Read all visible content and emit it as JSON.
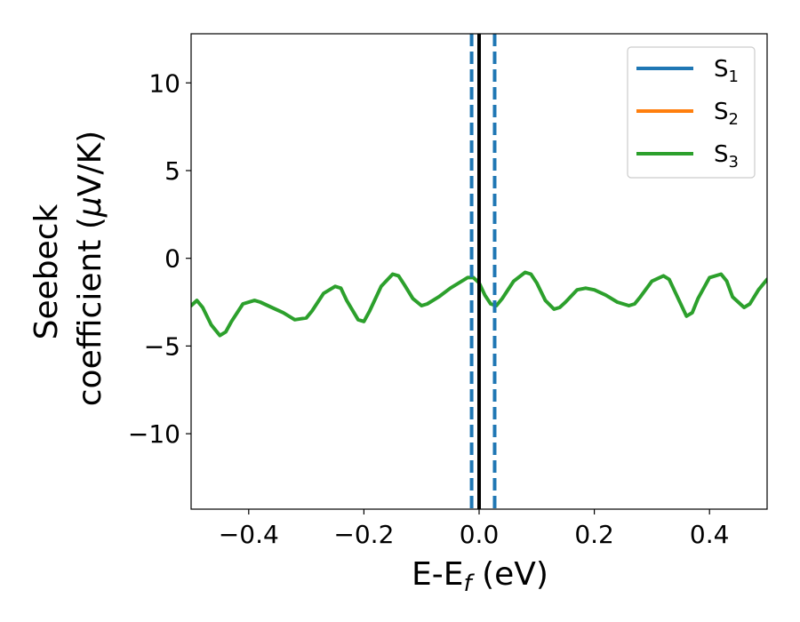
{
  "chart_data": {
    "type": "line",
    "xlabel": {
      "main": "E-E",
      "sub": "f",
      "tail": " (eV)"
    },
    "ylabel": {
      "line1": "Seebeck",
      "line2_pre": "coefficient  (",
      "line2_mu": "μ",
      "line2_post": "V/K)"
    },
    "xlim": [
      -0.5,
      0.5
    ],
    "ylim": [
      -14.3,
      12.8
    ],
    "x_ticks": [
      -0.4,
      -0.2,
      0.0,
      0.2,
      0.4
    ],
    "x_tick_labels": [
      "−0.4",
      "−0.2",
      "0.0",
      "0.2",
      "0.4"
    ],
    "y_ticks": [
      -10,
      -5,
      0,
      5,
      10
    ],
    "y_tick_labels": [
      "−10",
      "−5",
      "0",
      "5",
      "10"
    ],
    "grid": false,
    "legend_position": "top-right",
    "series": [
      {
        "name": "S",
        "subscript": "1",
        "color": "#1f77b4"
      },
      {
        "name": "S",
        "subscript": "2",
        "color": "#ff7f0e"
      },
      {
        "name": "S",
        "subscript": "3",
        "color": "#2ca02c",
        "x": [
          -0.5,
          -0.49,
          -0.48,
          -0.465,
          -0.45,
          -0.44,
          -0.43,
          -0.41,
          -0.39,
          -0.38,
          -0.36,
          -0.34,
          -0.32,
          -0.3,
          -0.29,
          -0.27,
          -0.25,
          -0.24,
          -0.23,
          -0.21,
          -0.2,
          -0.19,
          -0.17,
          -0.15,
          -0.14,
          -0.13,
          -0.115,
          -0.1,
          -0.09,
          -0.07,
          -0.05,
          -0.02,
          -0.01,
          0.0,
          0.01,
          0.02,
          0.03,
          0.04,
          0.06,
          0.08,
          0.09,
          0.1,
          0.115,
          0.13,
          0.14,
          0.15,
          0.17,
          0.185,
          0.2,
          0.22,
          0.24,
          0.26,
          0.27,
          0.28,
          0.3,
          0.32,
          0.33,
          0.34,
          0.36,
          0.37,
          0.38,
          0.4,
          0.42,
          0.43,
          0.44,
          0.46,
          0.47,
          0.485,
          0.5
        ],
        "y": [
          -2.7,
          -2.4,
          -2.8,
          -3.8,
          -4.4,
          -4.2,
          -3.6,
          -2.6,
          -2.4,
          -2.5,
          -2.8,
          -3.1,
          -3.5,
          -3.4,
          -3.0,
          -2.0,
          -1.6,
          -1.7,
          -2.4,
          -3.5,
          -3.6,
          -3.0,
          -1.6,
          -0.9,
          -1.0,
          -1.5,
          -2.3,
          -2.7,
          -2.6,
          -2.2,
          -1.7,
          -1.1,
          -1.1,
          -1.4,
          -2.1,
          -2.6,
          -2.7,
          -2.3,
          -1.3,
          -0.8,
          -0.9,
          -1.4,
          -2.4,
          -2.9,
          -2.8,
          -2.5,
          -1.8,
          -1.7,
          -1.8,
          -2.1,
          -2.5,
          -2.7,
          -2.6,
          -2.2,
          -1.3,
          -1.0,
          -1.2,
          -1.9,
          -3.3,
          -3.1,
          -2.3,
          -1.1,
          -0.9,
          -1.3,
          -2.2,
          -2.8,
          -2.6,
          -1.8,
          -1.2
        ]
      }
    ],
    "vertical_lines": [
      {
        "x": 0.0,
        "style": "solid",
        "color": "#000000"
      },
      {
        "x": -0.013,
        "style": "dashed",
        "color": "#1f77b4"
      },
      {
        "x": 0.027,
        "style": "dashed",
        "color": "#1f77b4"
      }
    ]
  }
}
